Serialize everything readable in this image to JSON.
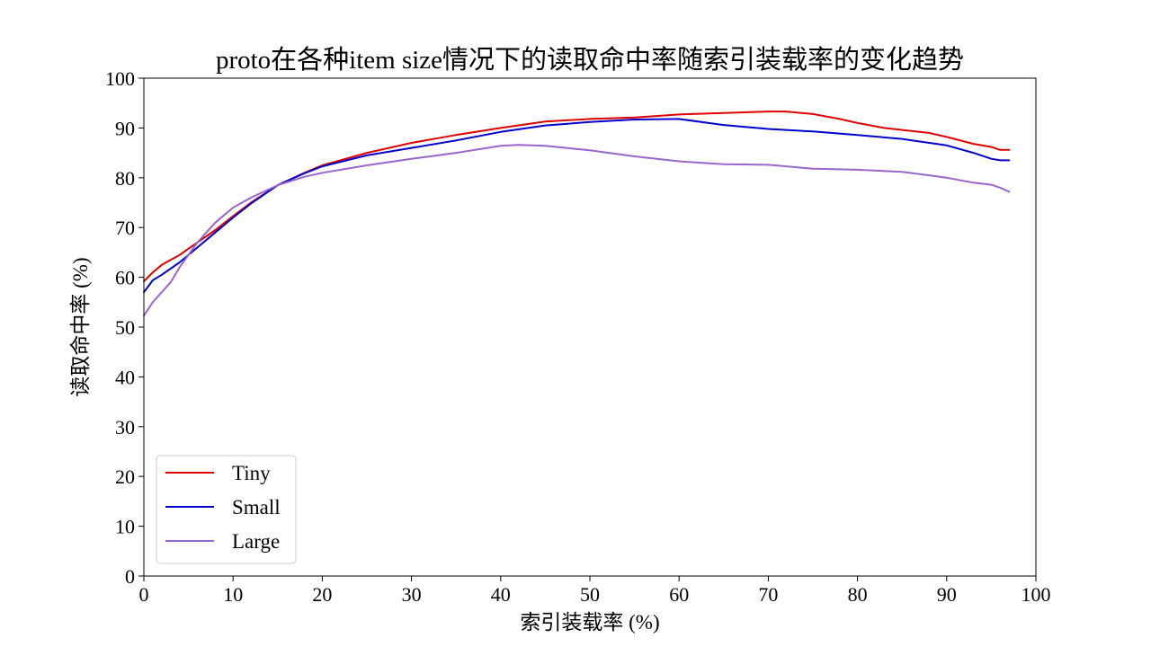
{
  "chart_data": {
    "type": "line",
    "title": "proto在各种item size情况下的读取命中率随索引装载率的变化趋势",
    "xlabel": "索引装载率 (%)",
    "ylabel": "读取命中率 (%)",
    "xlim": [
      0,
      100
    ],
    "ylim": [
      0,
      100
    ],
    "xticks": [
      0,
      10,
      20,
      30,
      40,
      50,
      60,
      70,
      80,
      90,
      100
    ],
    "yticks": [
      0,
      10,
      20,
      30,
      40,
      50,
      60,
      70,
      80,
      90,
      100
    ],
    "grid": false,
    "legend_position": "lower-left",
    "series": [
      {
        "name": "Tiny",
        "color": "#e00000",
        "x": [
          0,
          1,
          2,
          4,
          6,
          8,
          10,
          12,
          15,
          18,
          20,
          25,
          30,
          35,
          40,
          45,
          50,
          55,
          60,
          65,
          70,
          72,
          75,
          78,
          80,
          83,
          85,
          88,
          90,
          93,
          95,
          96,
          97
        ],
        "y": [
          59.2,
          61.0,
          62.5,
          64.5,
          67.0,
          69.5,
          72.3,
          75.0,
          78.5,
          81.0,
          82.5,
          85.0,
          87.0,
          88.6,
          90.0,
          91.3,
          91.8,
          92.1,
          92.7,
          93.0,
          93.3,
          93.3,
          92.8,
          91.8,
          91.0,
          90.0,
          89.6,
          89.0,
          88.2,
          86.8,
          86.2,
          85.6,
          85.6
        ]
      },
      {
        "name": "Small",
        "color": "#0000cc",
        "x": [
          0,
          1,
          2,
          4,
          6,
          8,
          10,
          12,
          15,
          18,
          20,
          25,
          30,
          35,
          40,
          45,
          50,
          55,
          60,
          65,
          70,
          75,
          80,
          85,
          90,
          93,
          95,
          96,
          97
        ],
        "y": [
          57.0,
          59.4,
          60.5,
          63.0,
          66.0,
          69.0,
          72.0,
          74.8,
          78.5,
          80.9,
          82.3,
          84.5,
          86.0,
          87.5,
          89.2,
          90.5,
          91.2,
          91.7,
          91.8,
          90.6,
          89.8,
          89.3,
          88.6,
          87.8,
          86.5,
          85.0,
          83.8,
          83.5,
          83.5
        ]
      },
      {
        "name": "Large",
        "color": "#9966cc",
        "x": [
          0,
          1,
          2,
          3,
          4,
          6,
          8,
          10,
          12,
          15,
          18,
          20,
          25,
          30,
          35,
          40,
          42,
          45,
          50,
          55,
          60,
          65,
          70,
          75,
          80,
          85,
          90,
          93,
          95,
          96,
          97
        ],
        "y": [
          52.3,
          55.0,
          57.0,
          59.0,
          62.0,
          67.0,
          71.0,
          74.0,
          76.0,
          78.5,
          80.2,
          81.0,
          82.5,
          83.8,
          85.0,
          86.4,
          86.6,
          86.4,
          85.5,
          84.3,
          83.3,
          82.7,
          82.6,
          81.8,
          81.6,
          81.2,
          80.0,
          79.0,
          78.6,
          78.0,
          77.2
        ]
      }
    ]
  }
}
